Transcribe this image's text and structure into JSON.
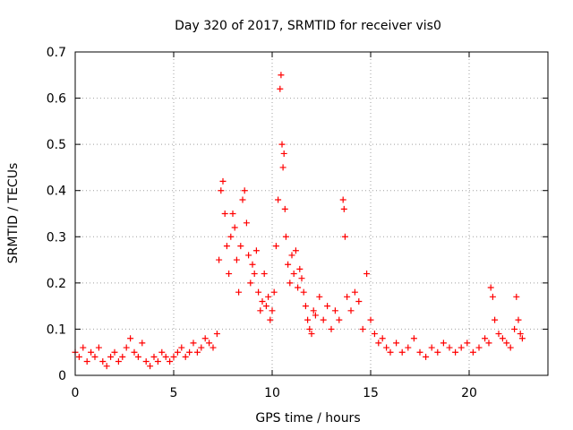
{
  "chart_data": {
    "type": "scatter",
    "title": "Day 320 of 2017, SRMTID for receiver vis0",
    "xlabel": "GPS time / hours",
    "ylabel": "SRMTID / TECUs",
    "xlim": [
      0,
      24
    ],
    "ylim": [
      0,
      0.7
    ],
    "xticks": [
      0,
      5,
      10,
      15,
      20
    ],
    "xtick_labels": [
      "0",
      "5",
      "10",
      "15",
      "20"
    ],
    "yticks": [
      0,
      0.1,
      0.2,
      0.3,
      0.4,
      0.5,
      0.6,
      0.7
    ],
    "ytick_labels": [
      "0",
      "0.1",
      "0.2",
      "0.3",
      "0.4",
      "0.5",
      "0.6",
      "0.7"
    ],
    "grid": true,
    "marker": "+",
    "series": [
      {
        "name": "vis0",
        "color": "#ff0000",
        "x": [
          0.0,
          0.2,
          0.4,
          0.6,
          0.8,
          1.0,
          1.2,
          1.4,
          1.6,
          1.8,
          2.0,
          2.2,
          2.4,
          2.6,
          2.8,
          3.0,
          3.2,
          3.4,
          3.6,
          3.8,
          4.0,
          4.2,
          4.4,
          4.6,
          4.8,
          5.0,
          5.2,
          5.4,
          5.6,
          5.8,
          6.0,
          6.2,
          6.4,
          6.6,
          6.8,
          7.0,
          7.2,
          7.3,
          7.4,
          7.5,
          7.6,
          7.7,
          7.8,
          7.9,
          8.0,
          8.1,
          8.2,
          8.3,
          8.4,
          8.5,
          8.6,
          8.7,
          8.8,
          8.9,
          9.0,
          9.1,
          9.2,
          9.3,
          9.4,
          9.5,
          9.6,
          9.7,
          9.8,
          9.9,
          10.0,
          10.1,
          10.2,
          10.3,
          10.4,
          10.45,
          10.5,
          10.55,
          10.6,
          10.65,
          10.7,
          10.8,
          10.9,
          11.0,
          11.1,
          11.2,
          11.3,
          11.4,
          11.5,
          11.6,
          11.7,
          11.8,
          11.9,
          12.0,
          12.1,
          12.2,
          12.4,
          12.6,
          12.8,
          13.0,
          13.2,
          13.4,
          13.6,
          13.65,
          13.7,
          13.8,
          14.0,
          14.2,
          14.4,
          14.6,
          14.8,
          15.0,
          15.2,
          15.4,
          15.6,
          15.8,
          16.0,
          16.3,
          16.6,
          16.9,
          17.2,
          17.5,
          17.8,
          18.1,
          18.4,
          18.7,
          19.0,
          19.3,
          19.6,
          19.9,
          20.2,
          20.5,
          20.8,
          21.0,
          21.1,
          21.2,
          21.3,
          21.5,
          21.7,
          21.9,
          22.1,
          22.3,
          22.4,
          22.5,
          22.6,
          22.7
        ],
        "y": [
          0.05,
          0.04,
          0.06,
          0.03,
          0.05,
          0.04,
          0.06,
          0.03,
          0.02,
          0.04,
          0.05,
          0.03,
          0.04,
          0.06,
          0.08,
          0.05,
          0.04,
          0.07,
          0.03,
          0.02,
          0.04,
          0.03,
          0.05,
          0.04,
          0.03,
          0.04,
          0.05,
          0.06,
          0.04,
          0.05,
          0.07,
          0.05,
          0.06,
          0.08,
          0.07,
          0.06,
          0.09,
          0.25,
          0.4,
          0.42,
          0.35,
          0.28,
          0.22,
          0.3,
          0.35,
          0.32,
          0.25,
          0.18,
          0.28,
          0.38,
          0.4,
          0.33,
          0.26,
          0.2,
          0.24,
          0.22,
          0.27,
          0.18,
          0.14,
          0.16,
          0.22,
          0.15,
          0.17,
          0.12,
          0.14,
          0.18,
          0.28,
          0.38,
          0.62,
          0.65,
          0.5,
          0.45,
          0.48,
          0.36,
          0.3,
          0.24,
          0.2,
          0.26,
          0.22,
          0.27,
          0.19,
          0.23,
          0.21,
          0.18,
          0.15,
          0.12,
          0.1,
          0.09,
          0.14,
          0.13,
          0.17,
          0.12,
          0.15,
          0.1,
          0.14,
          0.12,
          0.38,
          0.36,
          0.3,
          0.17,
          0.14,
          0.18,
          0.16,
          0.1,
          0.22,
          0.12,
          0.09,
          0.07,
          0.08,
          0.06,
          0.05,
          0.07,
          0.05,
          0.06,
          0.08,
          0.05,
          0.04,
          0.06,
          0.05,
          0.07,
          0.06,
          0.05,
          0.06,
          0.07,
          0.05,
          0.06,
          0.08,
          0.07,
          0.19,
          0.17,
          0.12,
          0.09,
          0.08,
          0.07,
          0.06,
          0.1,
          0.17,
          0.12,
          0.09,
          0.08
        ]
      }
    ]
  }
}
